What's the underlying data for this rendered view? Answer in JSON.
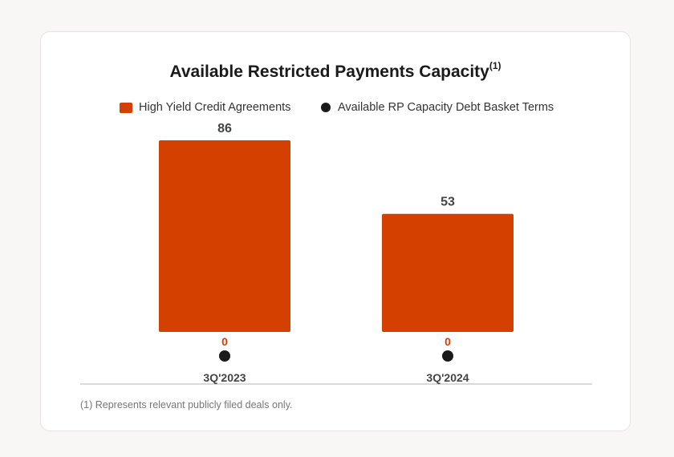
{
  "chart_data": {
    "type": "bar",
    "title": "Available Restricted Payments Capacity",
    "title_superscript": "(1)",
    "categories": [
      "3Q'2023",
      "3Q'2024"
    ],
    "series": [
      {
        "name": "High Yield Credit Agreements",
        "kind": "bar",
        "color": "#d44000",
        "values": [
          86,
          53
        ]
      },
      {
        "name": "Available RP Capacity Debt Basket Terms",
        "kind": "dot",
        "color": "#1a1a1a",
        "values": [
          0,
          0
        ]
      }
    ],
    "ylim": [
      0,
      86
    ],
    "grid": false,
    "legend_position": "top-center",
    "footnote": "(1) Represents relevant publicly filed deals only."
  }
}
